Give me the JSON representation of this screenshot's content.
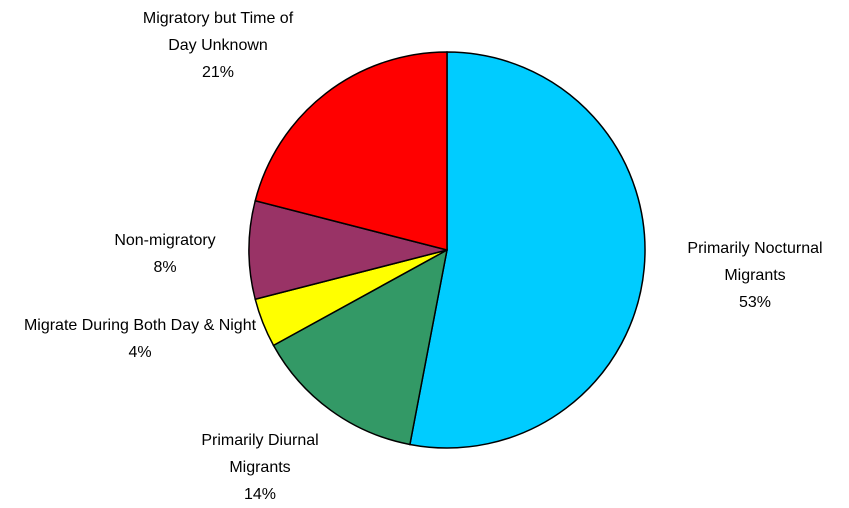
{
  "chart_data": {
    "type": "pie",
    "categories": [
      "Primarily Nocturnal Migrants",
      "Primarily Diurnal Migrants",
      "Migrate During Both Day & Night",
      "Non-migratory",
      "Migratory but Time of Day Unknown"
    ],
    "values": [
      53,
      14,
      4,
      8,
      21
    ],
    "value_labels": [
      "53%",
      "14%",
      "4%",
      "8%",
      "21%"
    ],
    "colors": [
      "#00ccff",
      "#339966",
      "#ffff00",
      "#993366",
      "#ff0000"
    ],
    "start_angle": 90,
    "direction": "clockwise"
  }
}
